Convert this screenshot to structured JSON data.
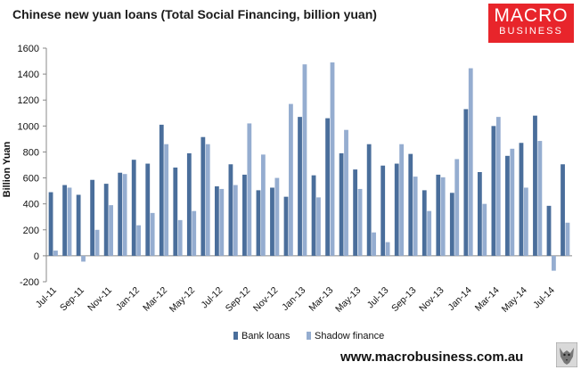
{
  "title": "Chinese new yuan loans (Total Social Financing, billion yuan)",
  "logo": {
    "line1": "MACRO",
    "line2": "BUSINESS"
  },
  "footer": {
    "url": "www.macrobusiness.com.au"
  },
  "icons": {
    "logo": "macrobusiness-logo",
    "wolf": "wolf-icon"
  },
  "colors": {
    "bank_loans": "#4a6e9b",
    "shadow_finance": "#95add0",
    "logo_bg": "#e8252b"
  },
  "chart_data": {
    "type": "bar",
    "title": "Chinese new yuan loans (Total Social Financing, billion yuan)",
    "ylabel": "Billion Yuan",
    "xlabel": "",
    "ylim": [
      -200,
      1600
    ],
    "yticks": [
      1600,
      1400,
      1200,
      1000,
      800,
      600,
      400,
      200,
      0,
      -200
    ],
    "grid": false,
    "legend": "bottom",
    "categories": [
      "Jul-11",
      "Aug-11",
      "Sep-11",
      "Oct-11",
      "Nov-11",
      "Dec-11",
      "Jan-12",
      "Feb-12",
      "Mar-12",
      "Apr-12",
      "May-12",
      "Jun-12",
      "Jul-12",
      "Aug-12",
      "Sep-12",
      "Oct-12",
      "Nov-12",
      "Dec-12",
      "Jan-13",
      "Feb-13",
      "Mar-13",
      "Apr-13",
      "May-13",
      "Jun-13",
      "Jul-13",
      "Aug-13",
      "Sep-13",
      "Oct-13",
      "Nov-13",
      "Dec-13",
      "Jan-14",
      "Feb-14",
      "Mar-14",
      "Apr-14",
      "May-14",
      "Jun-14",
      "Jul-14",
      "Aug-14"
    ],
    "x_tick_labels": [
      "Jul-11",
      "Sep-11",
      "Nov-11",
      "Jan-12",
      "Mar-12",
      "May-12",
      "Jul-12",
      "Sep-12",
      "Nov-12",
      "Jan-13",
      "Mar-13",
      "May-13",
      "Jul-13",
      "Sep-13",
      "Nov-13",
      "Jan-14",
      "Mar-14",
      "May-14",
      "Jul-14"
    ],
    "series": [
      {
        "name": "Bank loans",
        "values": [
          490,
          545,
          470,
          585,
          555,
          640,
          740,
          710,
          1010,
          680,
          790,
          915,
          535,
          705,
          625,
          505,
          525,
          455,
          1070,
          620,
          1060,
          790,
          665,
          860,
          695,
          710,
          785,
          505,
          625,
          485,
          1130,
          645,
          1000,
          770,
          870,
          1080,
          385,
          705
        ]
      },
      {
        "name": "Shadow finance",
        "values": [
          40,
          525,
          -45,
          200,
          390,
          630,
          235,
          330,
          860,
          275,
          345,
          860,
          515,
          545,
          1020,
          780,
          600,
          1170,
          1475,
          450,
          1490,
          970,
          515,
          180,
          105,
          860,
          610,
          345,
          605,
          745,
          1445,
          400,
          1070,
          825,
          525,
          885,
          -115,
          255
        ]
      }
    ]
  }
}
